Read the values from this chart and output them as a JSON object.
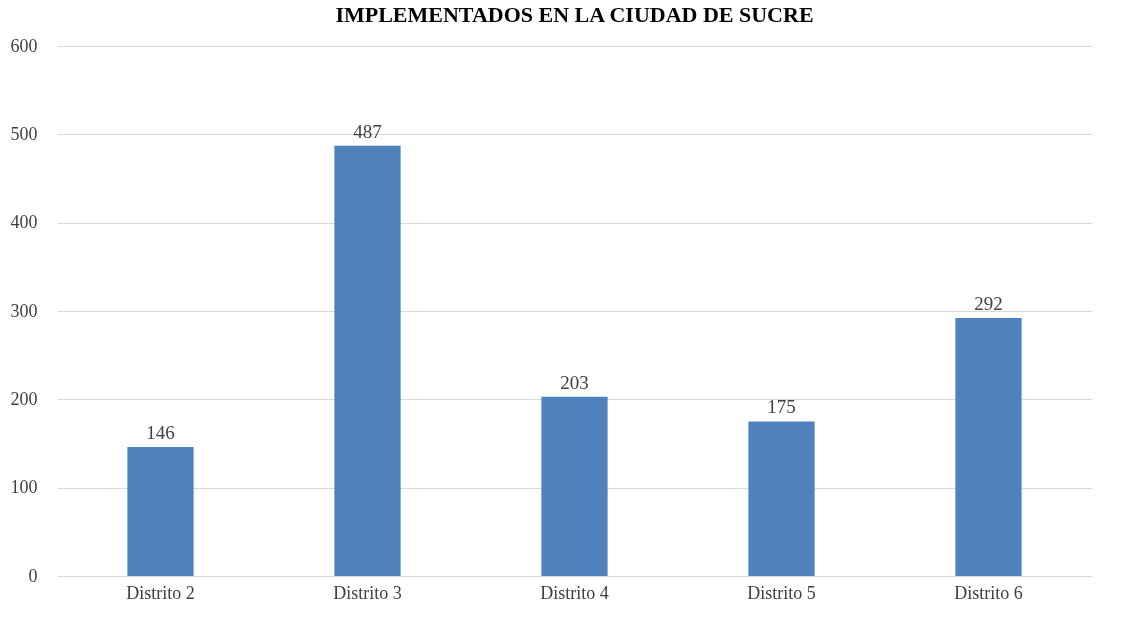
{
  "chart_data": {
    "type": "bar",
    "title": "IMPLEMENTADOS EN LA CIUDAD DE SUCRE",
    "categories": [
      "Distrito 2",
      "Distrito 3",
      "Distrito 4",
      "Distrito 5",
      "Distrito 6"
    ],
    "values": [
      146,
      487,
      203,
      175,
      292
    ],
    "color": "#4f81bd",
    "ylim": [
      0,
      600
    ],
    "yticks": [
      0,
      100,
      200,
      300,
      400,
      500,
      600
    ],
    "grid": "y",
    "data_labels": true
  }
}
